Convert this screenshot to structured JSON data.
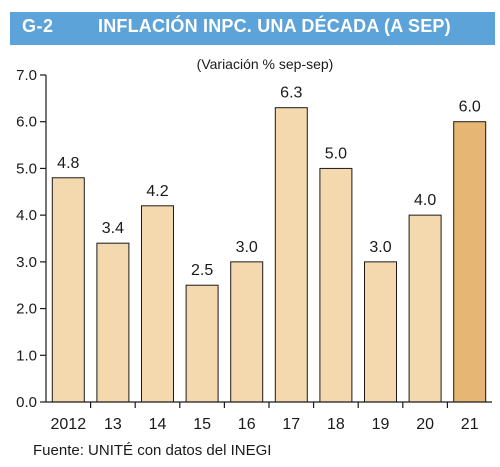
{
  "header": {
    "code": "G-2",
    "title": "INFLACIÓN INPC. UNA DÉCADA (A SEP)"
  },
  "colors": {
    "header_bg": "#5ba3d8",
    "bar_fill": "#f4d9ae",
    "bar_highlight": "#e6b675",
    "bar_stroke": "#1a1a1a"
  },
  "chart_data": {
    "type": "bar",
    "title": "INFLACIÓN INPC. UNA DÉCADA (A SEP)",
    "subtitle": "(Variación % sep-sep)",
    "categories": [
      "2012",
      "13",
      "14",
      "15",
      "16",
      "17",
      "18",
      "19",
      "20",
      "21"
    ],
    "values": [
      4.8,
      3.4,
      4.2,
      2.5,
      3.0,
      6.3,
      5.0,
      3.0,
      4.0,
      6.0
    ],
    "data_labels": [
      "4.8",
      "3.4",
      "4.2",
      "2.5",
      "3.0",
      "6.3",
      "5.0",
      "3.0",
      "4.0",
      "6.0"
    ],
    "highlight_index": 9,
    "yticks": [
      "0.0",
      "1.0",
      "2.0",
      "3.0",
      "4.0",
      "5.0",
      "6.0",
      "7.0"
    ],
    "ylim": [
      0,
      7
    ],
    "xlabel": "",
    "ylabel": "",
    "grid": false,
    "legend": "none"
  },
  "source": "Fuente: UNITÉ con datos del INEGI"
}
